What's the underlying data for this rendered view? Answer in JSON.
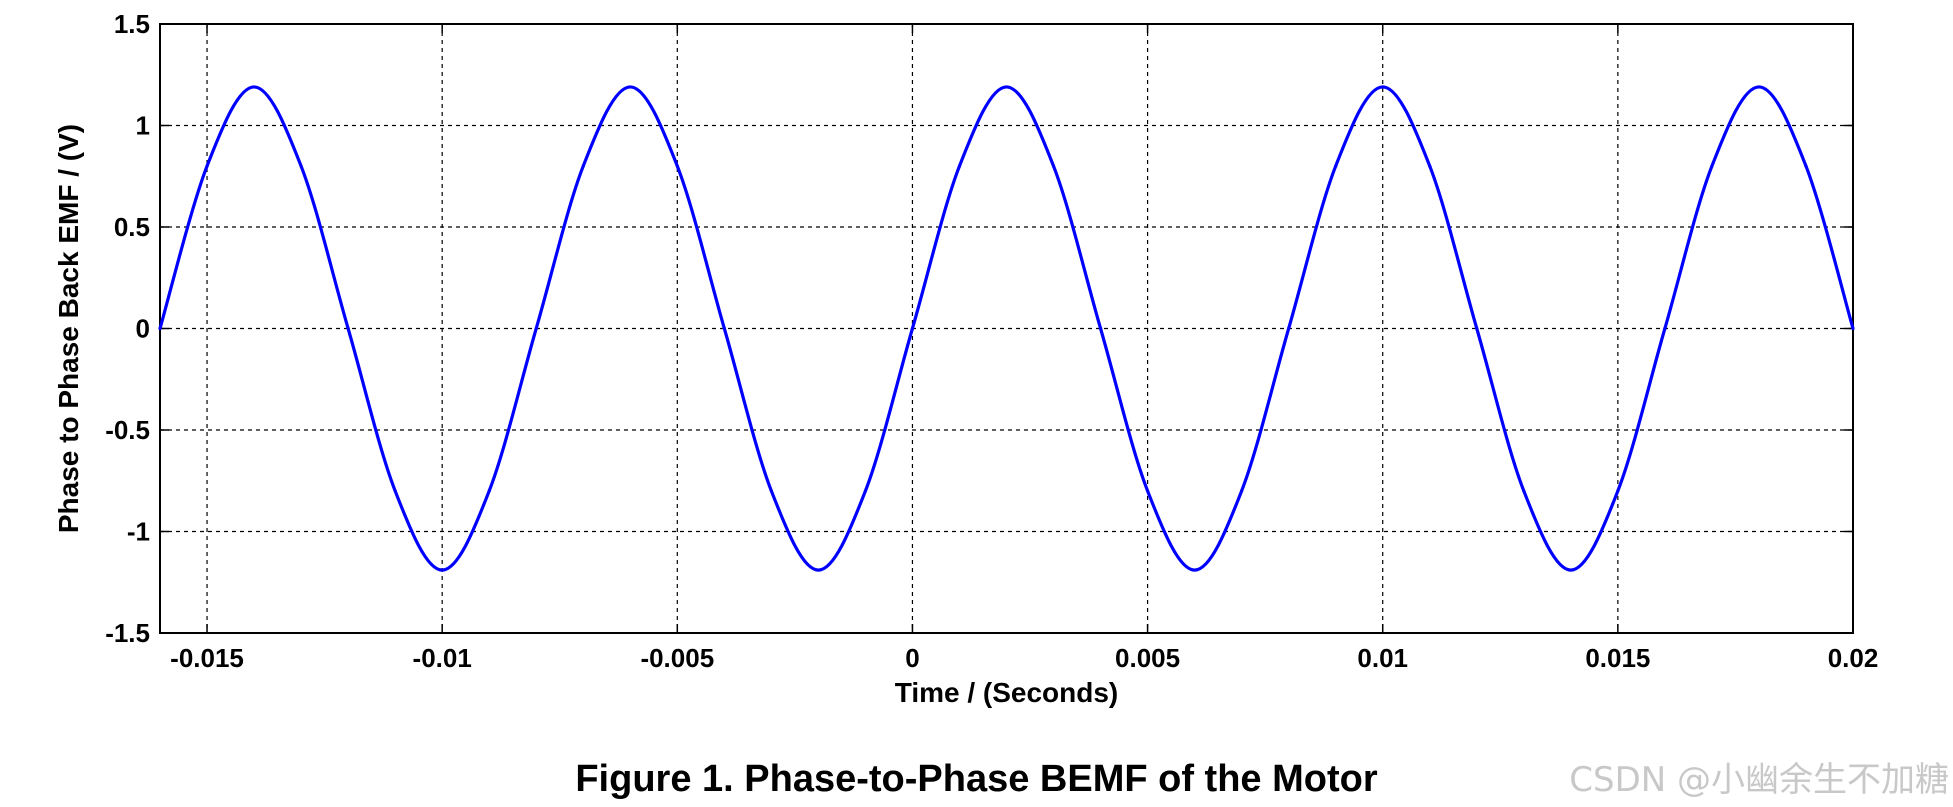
{
  "chart_data": {
    "type": "line",
    "xlabel": "Time / (Seconds)",
    "ylabel": "Phase to Phase Back EMF / (V)",
    "xlim": [
      -0.016,
      0.02
    ],
    "ylim": [
      -1.5,
      1.5
    ],
    "xticks": [
      -0.015,
      -0.01,
      -0.005,
      0,
      0.005,
      0.01,
      0.015,
      0.02
    ],
    "xtick_labels": [
      "-0.015",
      "-0.01",
      "-0.005",
      "0",
      "0.005",
      "0.01",
      "0.015",
      "0.02"
    ],
    "yticks": [
      -1.5,
      -1,
      -0.5,
      0,
      0.5,
      1,
      1.5
    ],
    "ytick_labels": [
      "-1.5",
      "-1",
      "-0.5",
      "0",
      "0.5",
      "1",
      "1.5"
    ],
    "grid": true,
    "series": [
      {
        "color": "#0000ff",
        "x": [
          -0.016,
          -0.015,
          -0.014,
          -0.013,
          -0.012,
          -0.011,
          -0.01,
          -0.009,
          -0.008,
          -0.007,
          -0.006,
          -0.005,
          -0.004,
          -0.003,
          -0.002,
          -0.001,
          0,
          0.001,
          0.002,
          0.003,
          0.004,
          0.005,
          0.006,
          0.007,
          0.008,
          0.009,
          0.01,
          0.011,
          0.012,
          0.013,
          0.014,
          0.015,
          0.016,
          0.017,
          0.018,
          0.019,
          0.02
        ],
        "y": [
          0,
          0.8,
          1.19,
          0.8,
          0,
          -0.8,
          -1.19,
          -0.8,
          0,
          0.8,
          1.19,
          0.8,
          0,
          -0.8,
          -1.19,
          -0.8,
          0,
          0.8,
          1.19,
          0.8,
          0,
          -0.8,
          -1.19,
          -0.8,
          0,
          0.8,
          1.19,
          0.8,
          0,
          -0.8,
          -1.19,
          -0.8,
          0,
          0.8,
          1.19,
          0.8,
          0
        ]
      }
    ]
  },
  "caption": "Figure 1. Phase-to-Phase BEMF of the Motor",
  "watermark": "CSDN @小幽余生不加糖"
}
